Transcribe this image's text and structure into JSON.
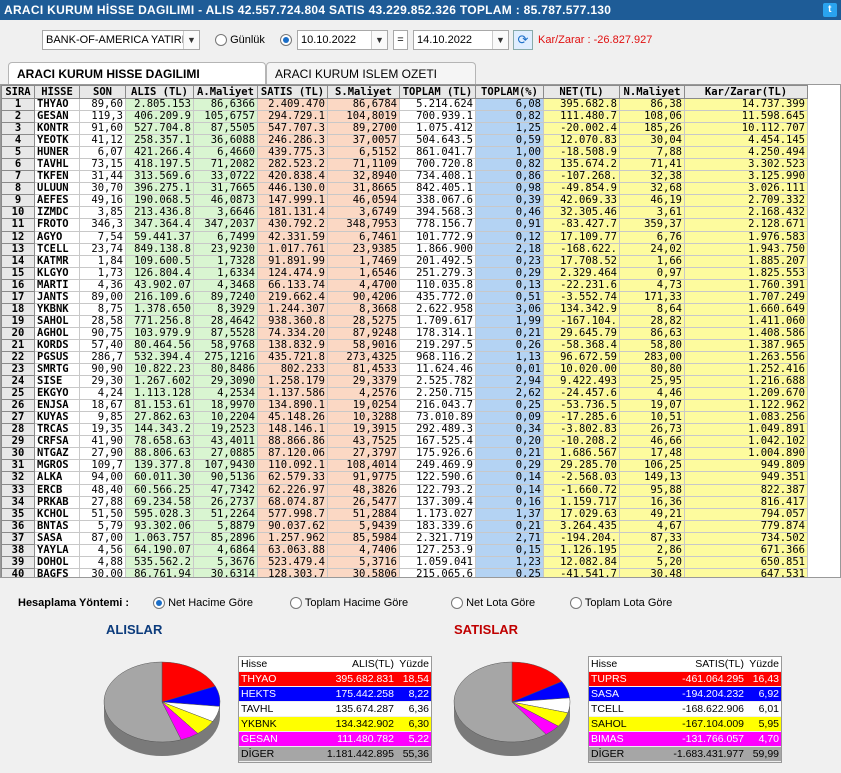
{
  "title": {
    "text": "ARACI KURUM HİSSE DAGILIMI - ALIS 42.557.724.804  SATIS 43.229.852.326  TOPLAM : 85.787.577.130",
    "twitter_glyph": "t"
  },
  "filter": {
    "broker": "BANK-OF-AMERICA YATIRIM",
    "gunluk_label": "Günlük",
    "date_from": "10.10.2022",
    "date_sep": "=",
    "date_to": "14.10.2022",
    "refresh_glyph": "⟳",
    "karzarar": "Kar/Zarar : -26.827.927"
  },
  "tabs": [
    "ARACI KURUM HISSE DAGILIMI",
    "ARACI KURUM ISLEM OZETI"
  ],
  "table": {
    "columns": [
      "SIRA",
      "HİSSE",
      "SON",
      "ALIS (TL)",
      "A.Maliyet",
      "SATIS (TL)",
      "S.Maliyet",
      "TOPLAM (TL)",
      "TOPLAM(%)",
      "NET(TL)",
      "N.Maliyet",
      "Kar/Zarar(TL)"
    ],
    "rows": [
      [
        "1",
        "THYAO",
        "89,60",
        "2.805.153",
        "86,6366",
        "2.409.470",
        "86,6784",
        "5.214.624",
        "6,08",
        "395.682.8",
        "86,38",
        "14.737.399"
      ],
      [
        "2",
        "GESAN",
        "119,3",
        "406.209.9",
        "105,6757",
        "294.729.1",
        "104,8019",
        "700.939.1",
        "0,82",
        "111.480.7",
        "108,06",
        "11.598.645"
      ],
      [
        "3",
        "KONTR",
        "91,60",
        "527.704.8",
        "87,5505",
        "547.707.3",
        "89,2700",
        "1.075.412",
        "1,25",
        "-20.002.4",
        "185,26",
        "10.112.707"
      ],
      [
        "4",
        "YEOTK",
        "41,12",
        "258.357.1",
        "36,6088",
        "246.286.3",
        "37,0057",
        "504.643.5",
        "0,59",
        "12.070.83",
        "30,04",
        "4.454.145"
      ],
      [
        "5",
        "HUNER",
        "6,07",
        "421.266.4",
        "6,4660",
        "439.775.3",
        "6,5152",
        "861.041.7",
        "1,00",
        "-18.508.9",
        "7,88",
        "4.250.494"
      ],
      [
        "6",
        "TAVHL",
        "73,15",
        "418.197.5",
        "71,2082",
        "282.523.2",
        "71,1109",
        "700.720.8",
        "0,82",
        "135.674.2",
        "71,41",
        "3.302.523"
      ],
      [
        "7",
        "TKFEN",
        "31,44",
        "313.569.6",
        "33,0722",
        "420.838.4",
        "32,8940",
        "734.408.1",
        "0,86",
        "-107.268.",
        "32,38",
        "3.125.990"
      ],
      [
        "8",
        "ULUUN",
        "30,70",
        "396.275.1",
        "31,7665",
        "446.130.0",
        "31,8665",
        "842.405.1",
        "0,98",
        "-49.854.9",
        "32,68",
        "3.026.111"
      ],
      [
        "9",
        "AEFES",
        "49,16",
        "190.068.5",
        "46,0873",
        "147.999.1",
        "46,0594",
        "338.067.6",
        "0,39",
        "42.069.33",
        "46,19",
        "2.709.332"
      ],
      [
        "10",
        "IZMDC",
        "3,85",
        "213.436.8",
        "3,6646",
        "181.131.4",
        "3,6749",
        "394.568.3",
        "0,46",
        "32.305.46",
        "3,61",
        "2.168.432"
      ],
      [
        "11",
        "FROTO",
        "346,3",
        "347.364.4",
        "347,2037",
        "430.792.2",
        "348,7953",
        "778.156.7",
        "0,91",
        "-83.427.7",
        "359,37",
        "2.128.671"
      ],
      [
        "12",
        "AGYO",
        "7,54",
        "59.441.37",
        "6,7499",
        "42.331.59",
        "6,7461",
        "101.772.9",
        "0,12",
        "17.109.77",
        "6,76",
        "1.976.583"
      ],
      [
        "13",
        "TCELL",
        "23,74",
        "849.138.8",
        "23,9230",
        "1.017.761",
        "23,9385",
        "1.866.900",
        "2,18",
        "-168.622.",
        "24,02",
        "1.943.750"
      ],
      [
        "14",
        "KATMR",
        "1,84",
        "109.600.5",
        "1,7328",
        "91.891.99",
        "1,7469",
        "201.492.5",
        "0,23",
        "17.708.52",
        "1,66",
        "1.885.207"
      ],
      [
        "15",
        "KLGYO",
        "1,73",
        "126.804.4",
        "1,6334",
        "124.474.9",
        "1,6546",
        "251.279.3",
        "0,29",
        "2.329.464",
        "0,97",
        "1.825.553"
      ],
      [
        "16",
        "MARTI",
        "4,36",
        "43.902.07",
        "4,3468",
        "66.133.74",
        "4,4700",
        "110.035.8",
        "0,13",
        "-22.231.6",
        "4,73",
        "1.760.391"
      ],
      [
        "17",
        "JANTS",
        "89,00",
        "216.109.6",
        "89,7240",
        "219.662.4",
        "90,4206",
        "435.772.0",
        "0,51",
        "-3.552.74",
        "171,33",
        "1.707.249"
      ],
      [
        "18",
        "YKBNK",
        "8,75",
        "1.378.650",
        "8,3929",
        "1.244.307",
        "8,3668",
        "2.622.958",
        "3,06",
        "134.342.9",
        "8,64",
        "1.660.649"
      ],
      [
        "19",
        "SAHOL",
        "28,58",
        "771.256.8",
        "28,4642",
        "938.360.8",
        "28,5275",
        "1.709.617",
        "1,99",
        "-167.104.",
        "28,82",
        "1.411.060"
      ],
      [
        "20",
        "AGHOL",
        "90,75",
        "103.979.9",
        "87,5528",
        "74.334.20",
        "87,9248",
        "178.314.1",
        "0,21",
        "29.645.79",
        "86,63",
        "1.408.586"
      ],
      [
        "21",
        "KORDS",
        "57,40",
        "80.464.56",
        "58,9768",
        "138.832.9",
        "58,9016",
        "219.297.5",
        "0,26",
        "-58.368.4",
        "58,80",
        "1.387.965"
      ],
      [
        "22",
        "PGSUS",
        "286,7",
        "532.394.4",
        "275,1216",
        "435.721.8",
        "273,4325",
        "968.116.2",
        "1,13",
        "96.672.59",
        "283,00",
        "1.263.556"
      ],
      [
        "23",
        "SMRTG",
        "90,90",
        "10.822.23",
        "80,8486",
        "802.233",
        "81,4533",
        "11.624.46",
        "0,01",
        "10.020.00",
        "80,80",
        "1.252.416"
      ],
      [
        "24",
        "SISE",
        "29,30",
        "1.267.602",
        "29,3090",
        "1.258.179",
        "29,3379",
        "2.525.782",
        "2,94",
        "9.422.493",
        "25,95",
        "1.216.688"
      ],
      [
        "25",
        "EKGYO",
        "4,24",
        "1.113.128",
        "4,2534",
        "1.137.586",
        "4,2576",
        "2.250.715",
        "2,62",
        "-24.457.6",
        "4,46",
        "1.209.670"
      ],
      [
        "26",
        "ENJSA",
        "18,67",
        "81.153.61",
        "18,9970",
        "134.890.1",
        "19,0254",
        "216.043.7",
        "0,25",
        "-53.736.5",
        "19,07",
        "1.122.962"
      ],
      [
        "27",
        "KUYAS",
        "9,85",
        "27.862.63",
        "10,2204",
        "45.148.26",
        "10,3288",
        "73.010.89",
        "0,09",
        "-17.285.6",
        "10,51",
        "1.083.256"
      ],
      [
        "28",
        "TRCAS",
        "19,35",
        "144.343.2",
        "19,2523",
        "148.146.1",
        "19,3915",
        "292.489.3",
        "0,34",
        "-3.802.83",
        "26,73",
        "1.049.891"
      ],
      [
        "29",
        "CRFSA",
        "41,90",
        "78.658.63",
        "43,4011",
        "88.866.86",
        "43,7525",
        "167.525.4",
        "0,20",
        "-10.208.2",
        "46,66",
        "1.042.102"
      ],
      [
        "30",
        "NTGAZ",
        "27,90",
        "88.806.63",
        "27,0885",
        "87.120.06",
        "27,3797",
        "175.926.6",
        "0,21",
        "1.686.567",
        "17,48",
        "1.004.890"
      ],
      [
        "31",
        "MGROS",
        "109,7",
        "139.377.8",
        "107,9430",
        "110.092.1",
        "108,4014",
        "249.469.9",
        "0,29",
        "29.285.70",
        "106,25",
        "949.809"
      ],
      [
        "32",
        "ALKA",
        "94,00",
        "60.011.30",
        "90,5136",
        "62.579.33",
        "91,9775",
        "122.590.6",
        "0,14",
        "-2.568.03",
        "149,13",
        "949.351"
      ],
      [
        "33",
        "ERCB",
        "48,40",
        "60.566.25",
        "47,7342",
        "62.226.97",
        "48,3826",
        "122.793.2",
        "0,14",
        "-1.660.72",
        "95,88",
        "822.387"
      ],
      [
        "34",
        "PRKAB",
        "27,88",
        "69.234.58",
        "26,2737",
        "68.074.87",
        "26,5477",
        "137.309.4",
        "0,16",
        "1.159.717",
        "16,36",
        "816.417"
      ],
      [
        "35",
        "KCHOL",
        "51,50",
        "595.028.3",
        "51,2264",
        "577.998.7",
        "51,2884",
        "1.173.027",
        "1,37",
        "17.029.63",
        "49,21",
        "794.057"
      ],
      [
        "36",
        "BNTAS",
        "5,79",
        "93.302.06",
        "5,8879",
        "90.037.62",
        "5,9439",
        "183.339.6",
        "0,21",
        "3.264.435",
        "4,67",
        "779.874"
      ],
      [
        "37",
        "SASA",
        "87,00",
        "1.063.757",
        "85,2896",
        "1.257.962",
        "85,5984",
        "2.321.719",
        "2,71",
        "-194.204.",
        "87,33",
        "734.502"
      ],
      [
        "38",
        "YAYLA",
        "4,56",
        "64.190.07",
        "4,6864",
        "63.063.88",
        "4,7406",
        "127.253.9",
        "0,15",
        "1.126.195",
        "2,86",
        "671.366"
      ],
      [
        "39",
        "DOHOL",
        "4,88",
        "535.562.2",
        "5,3676",
        "523.479.4",
        "5,3716",
        "1.059.041",
        "1,23",
        "12.082.84",
        "5,20",
        "650.851"
      ],
      [
        "40",
        "BAGFS",
        "30,00",
        "86.761.94",
        "30,6314",
        "128.303.7",
        "30,5806",
        "215.065.6",
        "0,25",
        "-41.541.7",
        "30,48",
        "647.531"
      ]
    ]
  },
  "bottom": {
    "hesaplama_label": "Hesaplama Yöntemi :",
    "options": [
      "Net Hacime Göre",
      "Toplam Hacime Göre",
      "Net Lota Göre",
      "Toplam Lota Göre"
    ],
    "selected_option": 0,
    "alislar": {
      "title": "ALISLAR",
      "headers": [
        "Hisse",
        "ALIS(TL)",
        "Yüzde"
      ],
      "rows": [
        {
          "name": "THYAO",
          "value": "395.682.831",
          "pct": "18,54",
          "color": "#ff0000",
          "fg": "#ffffff",
          "share": 18.54
        },
        {
          "name": "HEKTS",
          "value": "175.442.258",
          "pct": "8,22",
          "color": "#0000ff",
          "fg": "#ffffff",
          "share": 8.22
        },
        {
          "name": "TAVHL",
          "value": "135.674.287",
          "pct": "6,36",
          "color": "#ffffff",
          "fg": "#000000",
          "share": 6.36
        },
        {
          "name": "YKBNK",
          "value": "134.342.902",
          "pct": "6,30",
          "color": "#ffff00",
          "fg": "#000000",
          "share": 6.3
        },
        {
          "name": "GESAN",
          "value": "111.480.782",
          "pct": "5,22",
          "color": "#ff00ff",
          "fg": "#ffffff",
          "share": 5.22
        },
        {
          "name": "DİGER",
          "value": "1.181.442.895",
          "pct": "55,36",
          "color": "#a6a6a6",
          "fg": "#000000",
          "share": 55.36
        }
      ]
    },
    "satislar": {
      "title": "SATISLAR",
      "headers": [
        "Hisse",
        "SATIS(TL)",
        "Yüzde"
      ],
      "rows": [
        {
          "name": "TUPRS",
          "value": "-461.064.295",
          "pct": "16,43",
          "color": "#ff0000",
          "fg": "#ffffff",
          "share": 16.43
        },
        {
          "name": "SASA",
          "value": "-194.204.232",
          "pct": "6,92",
          "color": "#0000ff",
          "fg": "#ffffff",
          "share": 6.92
        },
        {
          "name": "TCELL",
          "value": "-168.622.906",
          "pct": "6,01",
          "color": "#ffffff",
          "fg": "#000000",
          "share": 6.01
        },
        {
          "name": "SAHOL",
          "value": "-167.104.009",
          "pct": "5,95",
          "color": "#ffff00",
          "fg": "#000000",
          "share": 5.95
        },
        {
          "name": "BIMAS",
          "value": "-131.766.057",
          "pct": "4,70",
          "color": "#ff00ff",
          "fg": "#ffffff",
          "share": 4.7
        },
        {
          "name": "DİGER",
          "value": "-1.683.431.977",
          "pct": "59,99",
          "color": "#a6a6a6",
          "fg": "#000000",
          "share": 59.99
        }
      ]
    }
  }
}
